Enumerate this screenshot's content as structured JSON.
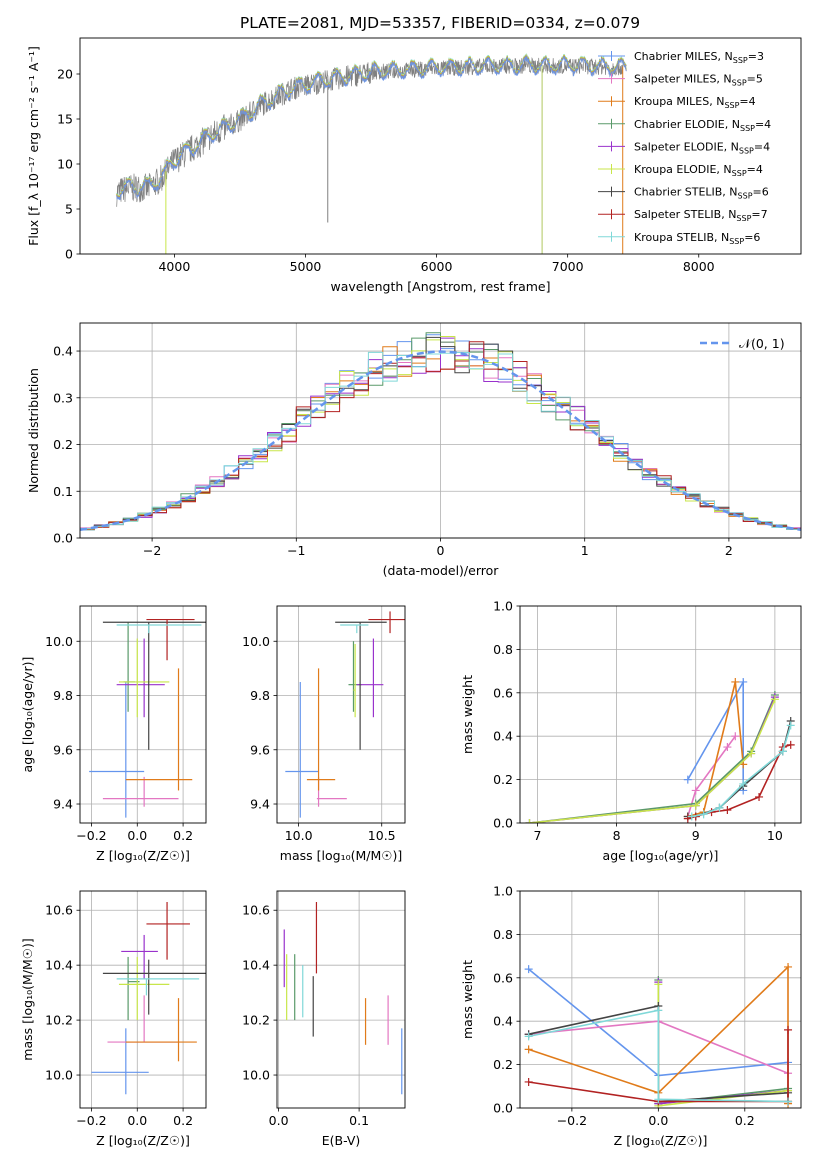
{
  "page_title": "PLATE=2081, MJD=53357, FIBERID=0334, z=0.079",
  "colors": {
    "Chabrier MILES": "#6495ed",
    "Salpeter MILES": "#e377c2",
    "Kroupa MILES": "#e07b1a",
    "Chabrier ELODIE": "#5a9a6a",
    "Salpeter ELODIE": "#9932cc",
    "Kroupa ELODIE": "#c8e64a",
    "Chabrier STELIB": "#444444",
    "Salpeter STELIB": "#b22222",
    "Kroupa STELIB": "#80d8d8",
    "data": "#808080",
    "normal": "#6495ed",
    "grid": "#b0b0b0"
  },
  "legend_spectrum": [
    {
      "key": "Chabrier MILES",
      "prefix": "Chabrier MILES, N",
      "n": "3"
    },
    {
      "key": "Salpeter MILES",
      "prefix": "Salpeter MILES, N",
      "n": "5"
    },
    {
      "key": "Kroupa MILES",
      "prefix": "Kroupa MILES, N",
      "n": "4"
    },
    {
      "key": "Chabrier ELODIE",
      "prefix": "Chabrier ELODIE, N",
      "n": "4"
    },
    {
      "key": "Salpeter ELODIE",
      "prefix": "Salpeter ELODIE, N",
      "n": "4"
    },
    {
      "key": "Kroupa ELODIE",
      "prefix": "Kroupa ELODIE, N",
      "n": "4"
    },
    {
      "key": "Chabrier STELIB",
      "prefix": "Chabrier STELIB, N",
      "n": "6"
    },
    {
      "key": "Salpeter STELIB",
      "prefix": "Salpeter STELIB, N",
      "n": "7"
    },
    {
      "key": "Kroupa STELIB",
      "prefix": "Kroupa STELIB, N",
      "n": "6"
    }
  ],
  "legend_hist": "𝒩(0, 1)",
  "chart_data": [
    {
      "id": "spectrum",
      "type": "line",
      "title": "PLATE=2081, MJD=53357, FIBERID=0334, z=0.079",
      "xlabel": "wavelength [Angstrom, rest frame]",
      "ylabel": "Flux [f_λ 10⁻¹⁷ erg cm⁻² s⁻¹ A⁻¹]",
      "xlim": [
        3280,
        8780
      ],
      "ylim": [
        0,
        24
      ],
      "xticks": [
        4000,
        5000,
        6000,
        7000,
        8000
      ],
      "yticks": [
        0,
        5,
        10,
        15,
        20
      ],
      "continuum": [
        [
          3560,
          7
        ],
        [
          3650,
          7.5
        ],
        [
          3800,
          7.5
        ],
        [
          3900,
          8.5
        ],
        [
          4000,
          10.5
        ],
        [
          4100,
          11.5
        ],
        [
          4300,
          13.5
        ],
        [
          4500,
          15
        ],
        [
          4700,
          17
        ],
        [
          4900,
          18.5
        ],
        [
          5200,
          19.5
        ],
        [
          5500,
          20.3
        ],
        [
          6000,
          20.7
        ],
        [
          6500,
          21
        ],
        [
          7000,
          21
        ],
        [
          7450,
          20.8
        ]
      ],
      "model_cutoffs": {
        "Kroupa ELODIE": [
          3905,
          6805
        ],
        "Kroupa MILES": [
          3570,
          7420
        ]
      }
    },
    {
      "id": "residual-hist",
      "type": "line",
      "xlabel": "(data-model)/error",
      "ylabel": "Normed distribution",
      "xlim": [
        -2.5,
        2.5
      ],
      "ylim": [
        0,
        0.46
      ],
      "xticks": [
        -2,
        -1,
        0,
        1,
        2
      ],
      "yticks": [
        0,
        0.1,
        0.2,
        0.3,
        0.4
      ],
      "bin_width": 0.1,
      "normal": {
        "mu": 0,
        "sigma": 1
      }
    },
    {
      "id": "Z-age",
      "type": "scatter",
      "xlabel": "Z [log₁₀(Z/Z☉)]",
      "ylabel": "age  [log₁₀(age/yr)]",
      "xlim": [
        -0.25,
        0.3
      ],
      "ylim": [
        9.33,
        10.13
      ],
      "xticks": [
        -0.2,
        0.0,
        0.2
      ],
      "yticks": [
        9.4,
        9.6,
        9.8,
        10.0
      ],
      "points": [
        {
          "key": "Chabrier MILES",
          "x": -0.05,
          "xerr": [
            0.16,
            0.08
          ],
          "y": 9.52,
          "yerr": [
            0.17,
            0.33
          ]
        },
        {
          "key": "Salpeter MILES",
          "x": 0.03,
          "xerr": [
            0.18,
            0.15
          ],
          "y": 9.42,
          "yerr": [
            0.03,
            0.08
          ]
        },
        {
          "key": "Kroupa MILES",
          "x": 0.18,
          "xerr": [
            0.23,
            0.06
          ],
          "y": 9.49,
          "yerr": [
            0.04,
            0.41
          ]
        },
        {
          "key": "Chabrier ELODIE",
          "x": -0.04,
          "xerr": [
            0.02,
            0.03
          ],
          "y": 9.85,
          "yerr": [
            0.11,
            0.22
          ]
        },
        {
          "key": "Salpeter ELODIE",
          "x": 0.03,
          "xerr": [
            0.12,
            0.09
          ],
          "y": 9.84,
          "yerr": [
            0.12,
            0.17
          ]
        },
        {
          "key": "Kroupa ELODIE",
          "x": 0.0,
          "xerr": [
            0.08,
            0.14
          ],
          "y": 9.85,
          "yerr": [
            0.13,
            0.16
          ]
        },
        {
          "key": "Chabrier STELIB",
          "x": 0.05,
          "xerr": [
            0.2,
            0.25
          ],
          "y": 10.07,
          "yerr": [
            0.47,
            0.0
          ]
        },
        {
          "key": "Salpeter STELIB",
          "x": 0.13,
          "xerr": [
            0.09,
            0.12
          ],
          "y": 10.08,
          "yerr": [
            0.15,
            0.0
          ]
        },
        {
          "key": "Kroupa STELIB",
          "x": 0.05,
          "xerr": [
            0.14,
            0.23
          ],
          "y": 10.06,
          "yerr": [
            0.03,
            0.0
          ]
        }
      ]
    },
    {
      "id": "mass-age",
      "type": "scatter",
      "xlabel": "mass [log₁₀(M/M☉)]",
      "ylabel": "",
      "xlim": [
        9.87,
        10.64
      ],
      "ylim": [
        9.33,
        10.13
      ],
      "xticks": [
        10.0,
        10.5
      ],
      "yticks": [
        9.4,
        9.6,
        9.8,
        10.0
      ],
      "points": [
        {
          "key": "Chabrier MILES",
          "x": 10.01,
          "xerr": [
            0.09,
            0.11
          ],
          "y": 9.52,
          "yerr": [
            0.17,
            0.33
          ]
        },
        {
          "key": "Salpeter MILES",
          "x": 10.12,
          "xerr": [
            0.01,
            0.17
          ],
          "y": 9.42,
          "yerr": [
            0.03,
            0.08
          ]
        },
        {
          "key": "Kroupa MILES",
          "x": 10.12,
          "xerr": [
            0.07,
            0.1
          ],
          "y": 9.49,
          "yerr": [
            0.04,
            0.41
          ]
        },
        {
          "key": "Chabrier ELODIE",
          "x": 10.33,
          "xerr": [
            0.03,
            0.05
          ],
          "y": 9.84,
          "yerr": [
            0.1,
            0.16
          ]
        },
        {
          "key": "Salpeter ELODIE",
          "x": 10.45,
          "xerr": [
            0.1,
            0.06
          ],
          "y": 9.84,
          "yerr": [
            0.12,
            0.17
          ]
        },
        {
          "key": "Kroupa ELODIE",
          "x": 10.34,
          "xerr": [
            0.01,
            0.0
          ],
          "y": 9.82,
          "yerr": [
            0.1,
            0.17
          ]
        },
        {
          "key": "Chabrier STELIB",
          "x": 10.37,
          "xerr": [
            0.15,
            0.16
          ],
          "y": 10.07,
          "yerr": [
            0.47,
            0.0
          ]
        },
        {
          "key": "Salpeter STELIB",
          "x": 10.55,
          "xerr": [
            0.13,
            0.1
          ],
          "y": 10.08,
          "yerr": [
            0.05,
            0.03
          ]
        },
        {
          "key": "Kroupa STELIB",
          "x": 10.35,
          "xerr": [
            0.1,
            0.07
          ],
          "y": 10.06,
          "yerr": [
            0.03,
            0.0
          ]
        }
      ]
    },
    {
      "id": "age-massweight",
      "type": "line",
      "xlabel": "age  [log₁₀(age/yr)]",
      "ylabel": "mass weight",
      "xlim": [
        6.78,
        10.33
      ],
      "ylim": [
        0,
        1
      ],
      "xticks": [
        7,
        8,
        9,
        10
      ],
      "yticks": [
        0,
        0.2,
        0.4,
        0.6,
        0.8,
        1.0
      ],
      "series": [
        {
          "key": "Chabrier MILES",
          "x": [
            8.9,
            9.6,
            9.6
          ],
          "y": [
            0.2,
            0.65,
            0.15
          ]
        },
        {
          "key": "Salpeter MILES",
          "x": [
            8.9,
            9.0,
            9.4,
            9.5
          ],
          "y": [
            0.03,
            0.15,
            0.35,
            0.4
          ]
        },
        {
          "key": "Kroupa MILES",
          "x": [
            8.9,
            9.1,
            9.5,
            9.6
          ],
          "y": [
            0.03,
            0.05,
            0.65,
            0.27
          ]
        },
        {
          "key": "Chabrier ELODIE",
          "x": [
            6.9,
            9.0,
            9.7,
            10.0
          ],
          "y": [
            0.0,
            0.09,
            0.33,
            0.59
          ]
        },
        {
          "key": "Salpeter ELODIE",
          "x": [
            6.9,
            9.0,
            9.7,
            10.0
          ],
          "y": [
            0.0,
            0.08,
            0.32,
            0.58
          ]
        },
        {
          "key": "Kroupa ELODIE",
          "x": [
            6.9,
            9.0,
            9.7,
            10.0
          ],
          "y": [
            0.0,
            0.08,
            0.32,
            0.57
          ]
        },
        {
          "key": "Chabrier STELIB",
          "x": [
            8.9,
            9.0,
            9.3,
            9.6,
            10.1,
            10.2
          ],
          "y": [
            0.03,
            0.03,
            0.07,
            0.17,
            0.33,
            0.47
          ]
        },
        {
          "key": "Salpeter STELIB",
          "x": [
            8.9,
            9.0,
            9.2,
            9.4,
            9.8,
            10.1,
            10.2
          ],
          "y": [
            0.02,
            0.03,
            0.05,
            0.06,
            0.12,
            0.35,
            0.36
          ]
        },
        {
          "key": "Kroupa STELIB",
          "x": [
            8.95,
            9.1,
            9.3,
            9.6,
            10.1,
            10.2
          ],
          "y": [
            0.03,
            0.04,
            0.07,
            0.18,
            0.33,
            0.45
          ]
        }
      ]
    },
    {
      "id": "Z-mass",
      "type": "scatter",
      "xlabel": "Z [log₁₀(Z/Z☉)]",
      "ylabel": "mass [log₁₀(M/M☉)]",
      "xlim": [
        -0.25,
        0.3
      ],
      "ylim": [
        9.88,
        10.67
      ],
      "xticks": [
        -0.2,
        0.0,
        0.2
      ],
      "yticks": [
        10.0,
        10.2,
        10.4,
        10.6
      ],
      "points": [
        {
          "key": "Chabrier MILES",
          "x": -0.05,
          "xerr": [
            0.15,
            0.1
          ],
          "y": 10.01,
          "yerr": [
            0.08,
            0.16
          ]
        },
        {
          "key": "Salpeter MILES",
          "x": 0.03,
          "xerr": [
            0.16,
            0.15
          ],
          "y": 10.12,
          "yerr": [
            0.0,
            0.17
          ]
        },
        {
          "key": "Kroupa MILES",
          "x": 0.18,
          "xerr": [
            0.23,
            0.08
          ],
          "y": 10.12,
          "yerr": [
            0.07,
            0.16
          ]
        },
        {
          "key": "Chabrier ELODIE",
          "x": -0.04,
          "xerr": [
            0.0,
            0.05
          ],
          "y": 10.34,
          "yerr": [
            0.14,
            0.09
          ]
        },
        {
          "key": "Salpeter ELODIE",
          "x": 0.03,
          "xerr": [
            0.1,
            0.06
          ],
          "y": 10.45,
          "yerr": [
            0.1,
            0.06
          ]
        },
        {
          "key": "Kroupa ELODIE",
          "x": 0.0,
          "xerr": [
            0.08,
            0.14
          ],
          "y": 10.33,
          "yerr": [
            0.13,
            0.1
          ]
        },
        {
          "key": "Chabrier STELIB",
          "x": 0.05,
          "xerr": [
            0.2,
            0.25
          ],
          "y": 10.37,
          "yerr": [
            0.15,
            0.05
          ]
        },
        {
          "key": "Salpeter STELIB",
          "x": 0.13,
          "xerr": [
            0.09,
            0.1
          ],
          "y": 10.55,
          "yerr": [
            0.13,
            0.08
          ]
        },
        {
          "key": "Kroupa STELIB",
          "x": 0.04,
          "xerr": [
            0.13,
            0.23
          ],
          "y": 10.35,
          "yerr": [
            0.06,
            0.0
          ]
        }
      ]
    },
    {
      "id": "ebv-mass",
      "type": "scatter",
      "xlabel": "E(B-V)",
      "ylabel": "",
      "xlim": [
        -0.002,
        0.157
      ],
      "ylim": [
        9.88,
        10.67
      ],
      "xticks": [
        0.0,
        0.1
      ],
      "xticklabels": [
        "0.0",
        "0.1"
      ],
      "yticks": [
        10.0,
        10.2,
        10.4,
        10.6
      ],
      "points": [
        {
          "key": "Chabrier MILES",
          "x": 0.153,
          "y": 10.01,
          "yerr": [
            0.08,
            0.16
          ]
        },
        {
          "key": "Salpeter MILES",
          "x": 0.136,
          "y": 10.19,
          "yerr": [
            0.08,
            0.1
          ]
        },
        {
          "key": "Kroupa MILES",
          "x": 0.108,
          "y": 10.18,
          "yerr": [
            0.07,
            0.1
          ]
        },
        {
          "key": "Chabrier ELODIE",
          "x": 0.02,
          "y": 10.3,
          "yerr": [
            0.1,
            0.14
          ]
        },
        {
          "key": "Salpeter ELODIE",
          "x": 0.007,
          "y": 10.45,
          "yerr": [
            0.13,
            0.08
          ]
        },
        {
          "key": "Kroupa ELODIE",
          "x": 0.01,
          "y": 10.32,
          "yerr": [
            0.12,
            0.12
          ]
        },
        {
          "key": "Chabrier STELIB",
          "x": 0.043,
          "y": 10.3,
          "yerr": [
            0.16,
            0.06
          ]
        },
        {
          "key": "Salpeter STELIB",
          "x": 0.047,
          "y": 10.5,
          "yerr": [
            0.13,
            0.13
          ]
        },
        {
          "key": "Kroupa STELIB",
          "x": 0.03,
          "y": 10.3,
          "yerr": [
            0.09,
            0.1
          ]
        }
      ]
    },
    {
      "id": "Z-massweight",
      "type": "line",
      "xlabel": "Z [log₁₀(Z/Z☉)]",
      "ylabel": "mass weight",
      "xlim": [
        -0.32,
        0.33
      ],
      "ylim": [
        0,
        1
      ],
      "xticks": [
        -0.2,
        0.0,
        0.2
      ],
      "yticks": [
        0,
        0.2,
        0.4,
        0.6,
        0.8,
        1.0
      ],
      "series": [
        {
          "key": "Chabrier MILES",
          "x": [
            -0.3,
            0.0,
            0.3
          ],
          "y": [
            0.64,
            0.15,
            0.21
          ]
        },
        {
          "key": "Salpeter MILES",
          "x": [
            -0.3,
            0.0,
            0.3
          ],
          "y": [
            0.34,
            0.4,
            0.16
          ]
        },
        {
          "key": "Kroupa MILES",
          "x": [
            -0.3,
            0.0,
            0.3,
            0.3
          ],
          "y": [
            0.27,
            0.07,
            0.65,
            0.02
          ]
        },
        {
          "key": "Chabrier ELODIE",
          "x": [
            0.0,
            0.0,
            0.3
          ],
          "y": [
            0.59,
            0.02,
            0.09
          ]
        },
        {
          "key": "Salpeter ELODIE",
          "x": [
            0.0,
            0.0,
            0.3
          ],
          "y": [
            0.58,
            0.02,
            0.08
          ]
        },
        {
          "key": "Kroupa ELODIE",
          "x": [
            0.0,
            0.0,
            0.3
          ],
          "y": [
            0.57,
            0.01,
            0.08
          ]
        },
        {
          "key": "Chabrier STELIB",
          "x": [
            -0.3,
            0.0,
            0.0,
            0.3,
            0.3
          ],
          "y": [
            0.34,
            0.47,
            0.03,
            0.07,
            0.03
          ]
        },
        {
          "key": "Salpeter STELIB",
          "x": [
            -0.3,
            0.0,
            0.3,
            0.3
          ],
          "y": [
            0.12,
            0.03,
            0.03,
            0.36
          ]
        },
        {
          "key": "Kroupa STELIB",
          "x": [
            -0.3,
            0.0,
            0.0,
            0.3
          ],
          "y": [
            0.33,
            0.45,
            0.04,
            0.03
          ]
        }
      ]
    }
  ]
}
